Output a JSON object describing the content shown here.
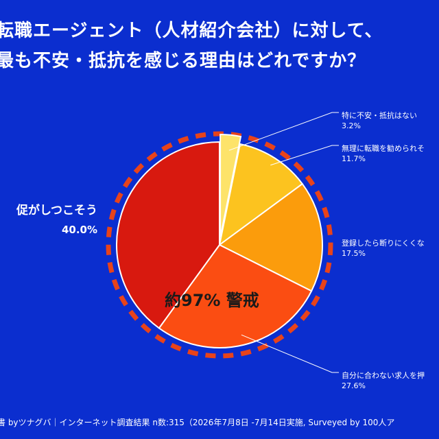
{
  "title": {
    "line1": "転職エージェント（人材紹介会社）に対して、",
    "line2": "最も不安・抵抗を感じる理由はどれですか？"
  },
  "highlight_text": "約97% 警戒",
  "footer": "書 byツナグバ｜インターネット調査結果 n数:315（2026年7月8日 -7月14日実施, Surveyed by 100人ア",
  "colors": {
    "background": "#0b2ecf",
    "dashed_ring": "#e8431a",
    "label_text": "#ffffff",
    "highlight_text": "#1a1a1a"
  },
  "chart_data": {
    "type": "pie",
    "title": "転職エージェント（人材紹介会社）に対して、最も不安・抵抗を感じる理由はどれですか？",
    "unit": "%",
    "slices": [
      {
        "label": "特に不安・抵抗はない",
        "value": 3.2,
        "value_text": "3.2%",
        "color": "#fde36a",
        "exploded": true
      },
      {
        "label": "無理に転職を勧められそ",
        "value": 11.7,
        "value_text": "11.7%",
        "color": "#fcc31f"
      },
      {
        "label": "登録したら断りにくくな",
        "value": 17.5,
        "value_text": "17.5%",
        "color": "#fb9c0c"
      },
      {
        "label": "自分に合わない求人を押",
        "value": 27.6,
        "value_text": "27.6%",
        "color": "#fb4d12"
      },
      {
        "label": "促がしつこそう",
        "value": 40.0,
        "value_text": "40.0%",
        "color": "#d8190f"
      }
    ]
  }
}
